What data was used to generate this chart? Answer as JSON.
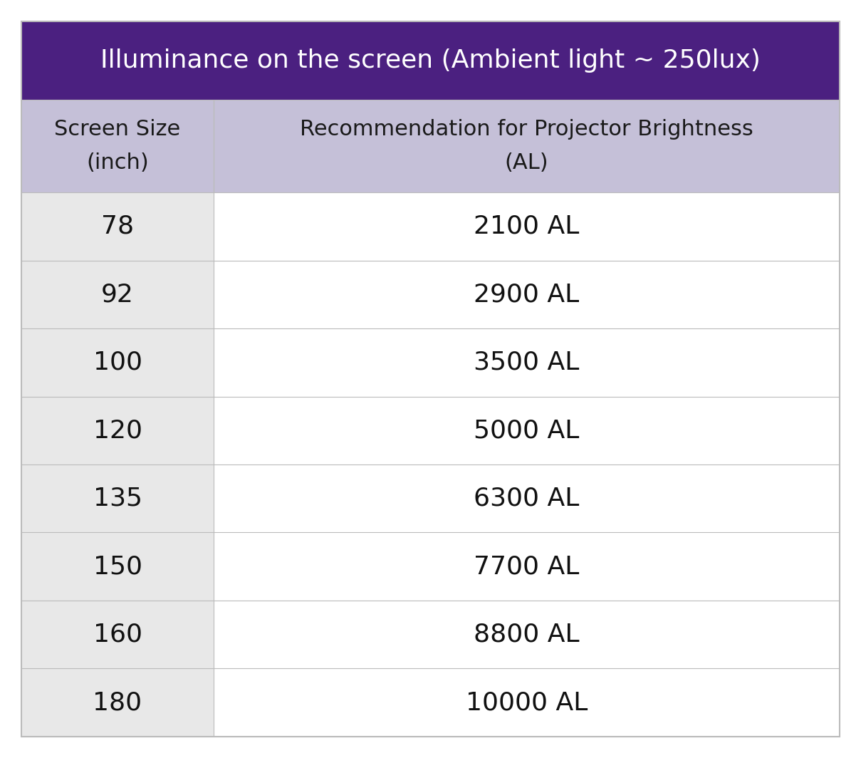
{
  "title": "Illuminance on the screen (Ambient light ~ 250lux)",
  "title_bg_color": "#4B2080",
  "title_text_color": "#FFFFFF",
  "header_bg_color": "#C5C0D8",
  "header_text_color": "#1a1a1a",
  "col1_header": "Screen Size\n(inch)",
  "col2_header": "Recommendation for Projector Brightness\n(AL)",
  "data_rows": [
    [
      "78",
      "2100 AL"
    ],
    [
      "92",
      "2900 AL"
    ],
    [
      "100",
      "3500 AL"
    ],
    [
      "120",
      "5000 AL"
    ],
    [
      "135",
      "6300 AL"
    ],
    [
      "150",
      "7700 AL"
    ],
    [
      "160",
      "8800 AL"
    ],
    [
      "180",
      "10000 AL"
    ]
  ],
  "col1_bg": "#E8E8E8",
  "col2_bg": "#FFFFFF",
  "grid_color": "#BBBBBB",
  "data_text_color": "#111111",
  "fig_width": 12.09,
  "fig_height": 10.64,
  "dpi": 100
}
